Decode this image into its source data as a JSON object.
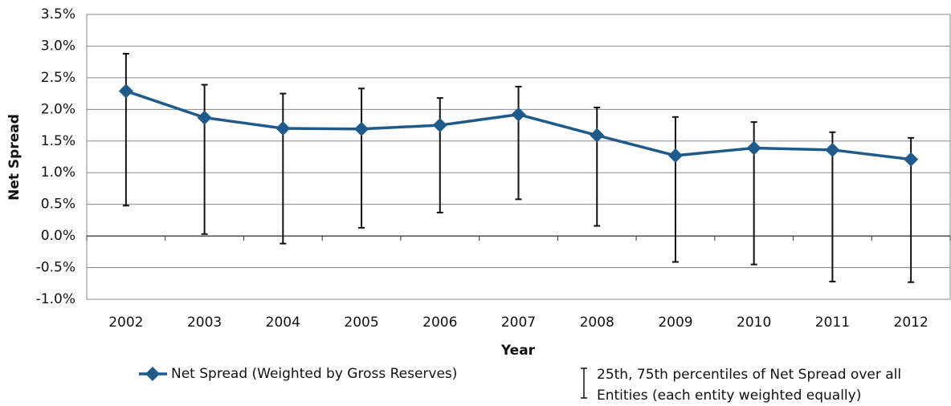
{
  "chart_data": {
    "type": "line",
    "y_label": "Net Spread",
    "x_label": "Year",
    "categories": [
      "2002",
      "2003",
      "2004",
      "2005",
      "2006",
      "2007",
      "2008",
      "2009",
      "2010",
      "2011",
      "2012"
    ],
    "series": [
      {
        "name": "Net Spread (Weighted by Gross Reserves)",
        "color": "#1f5a8a",
        "values": [
          2.29,
          1.87,
          1.7,
          1.69,
          1.75,
          1.92,
          1.59,
          1.27,
          1.39,
          1.36,
          1.21
        ],
        "low": [
          0.48,
          0.03,
          -0.12,
          0.13,
          0.37,
          0.58,
          0.16,
          -0.41,
          -0.45,
          -0.72,
          -0.73
        ],
        "high": [
          2.88,
          2.39,
          2.25,
          2.33,
          2.18,
          2.36,
          2.03,
          1.88,
          1.8,
          1.64,
          1.55
        ]
      }
    ],
    "error_bar_label": "25th, 75th percentiles of Net Spread over all Entities (each entity weighted equally)",
    "ylim": [
      -1.0,
      3.5
    ],
    "yticks": [
      {
        "value": -1.0,
        "label": "-1.0%"
      },
      {
        "value": -0.5,
        "label": "-0.5%"
      },
      {
        "value": 0.0,
        "label": "0.0%"
      },
      {
        "value": 0.5,
        "label": "0.5%"
      },
      {
        "value": 1.0,
        "label": "1.0%"
      },
      {
        "value": 1.5,
        "label": "1.5%"
      },
      {
        "value": 2.0,
        "label": "2.0%"
      },
      {
        "value": 2.5,
        "label": "2.5%"
      },
      {
        "value": 3.0,
        "label": "3.0%"
      },
      {
        "value": 3.5,
        "label": "3.5%"
      }
    ],
    "grid": true
  }
}
